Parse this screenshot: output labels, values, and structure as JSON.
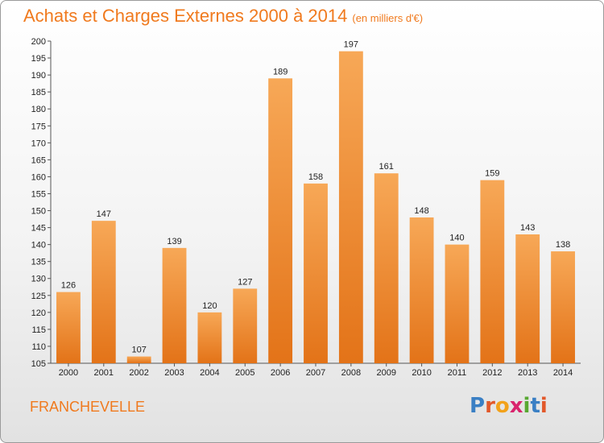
{
  "header": {
    "title": "Achats et Charges Externes 2000 à 2014",
    "subtitle": "(en milliers d'€)"
  },
  "footer": {
    "place": "FRANCHEVELLE",
    "logo_text": "Proxiti"
  },
  "colors": {
    "accent": "#f07a1e",
    "bar_top": "#f7a857",
    "bar_bottom": "#e37318"
  },
  "chart_data": {
    "type": "bar",
    "title": "Achats et Charges Externes 2000 à 2014",
    "subtitle": "(en milliers d'€)",
    "categories": [
      "2000",
      "2001",
      "2002",
      "2003",
      "2004",
      "2005",
      "2006",
      "2007",
      "2008",
      "2009",
      "2010",
      "2011",
      "2012",
      "2013",
      "2014"
    ],
    "values": [
      126,
      147,
      107,
      139,
      120,
      127,
      189,
      158,
      197,
      161,
      148,
      140,
      159,
      143,
      138
    ],
    "ylim": [
      105,
      200
    ],
    "yticks": [
      105,
      110,
      115,
      120,
      125,
      130,
      135,
      140,
      145,
      150,
      155,
      160,
      165,
      170,
      175,
      180,
      185,
      190,
      195,
      200
    ],
    "grid": false,
    "legend": "none",
    "data_labels": true
  }
}
